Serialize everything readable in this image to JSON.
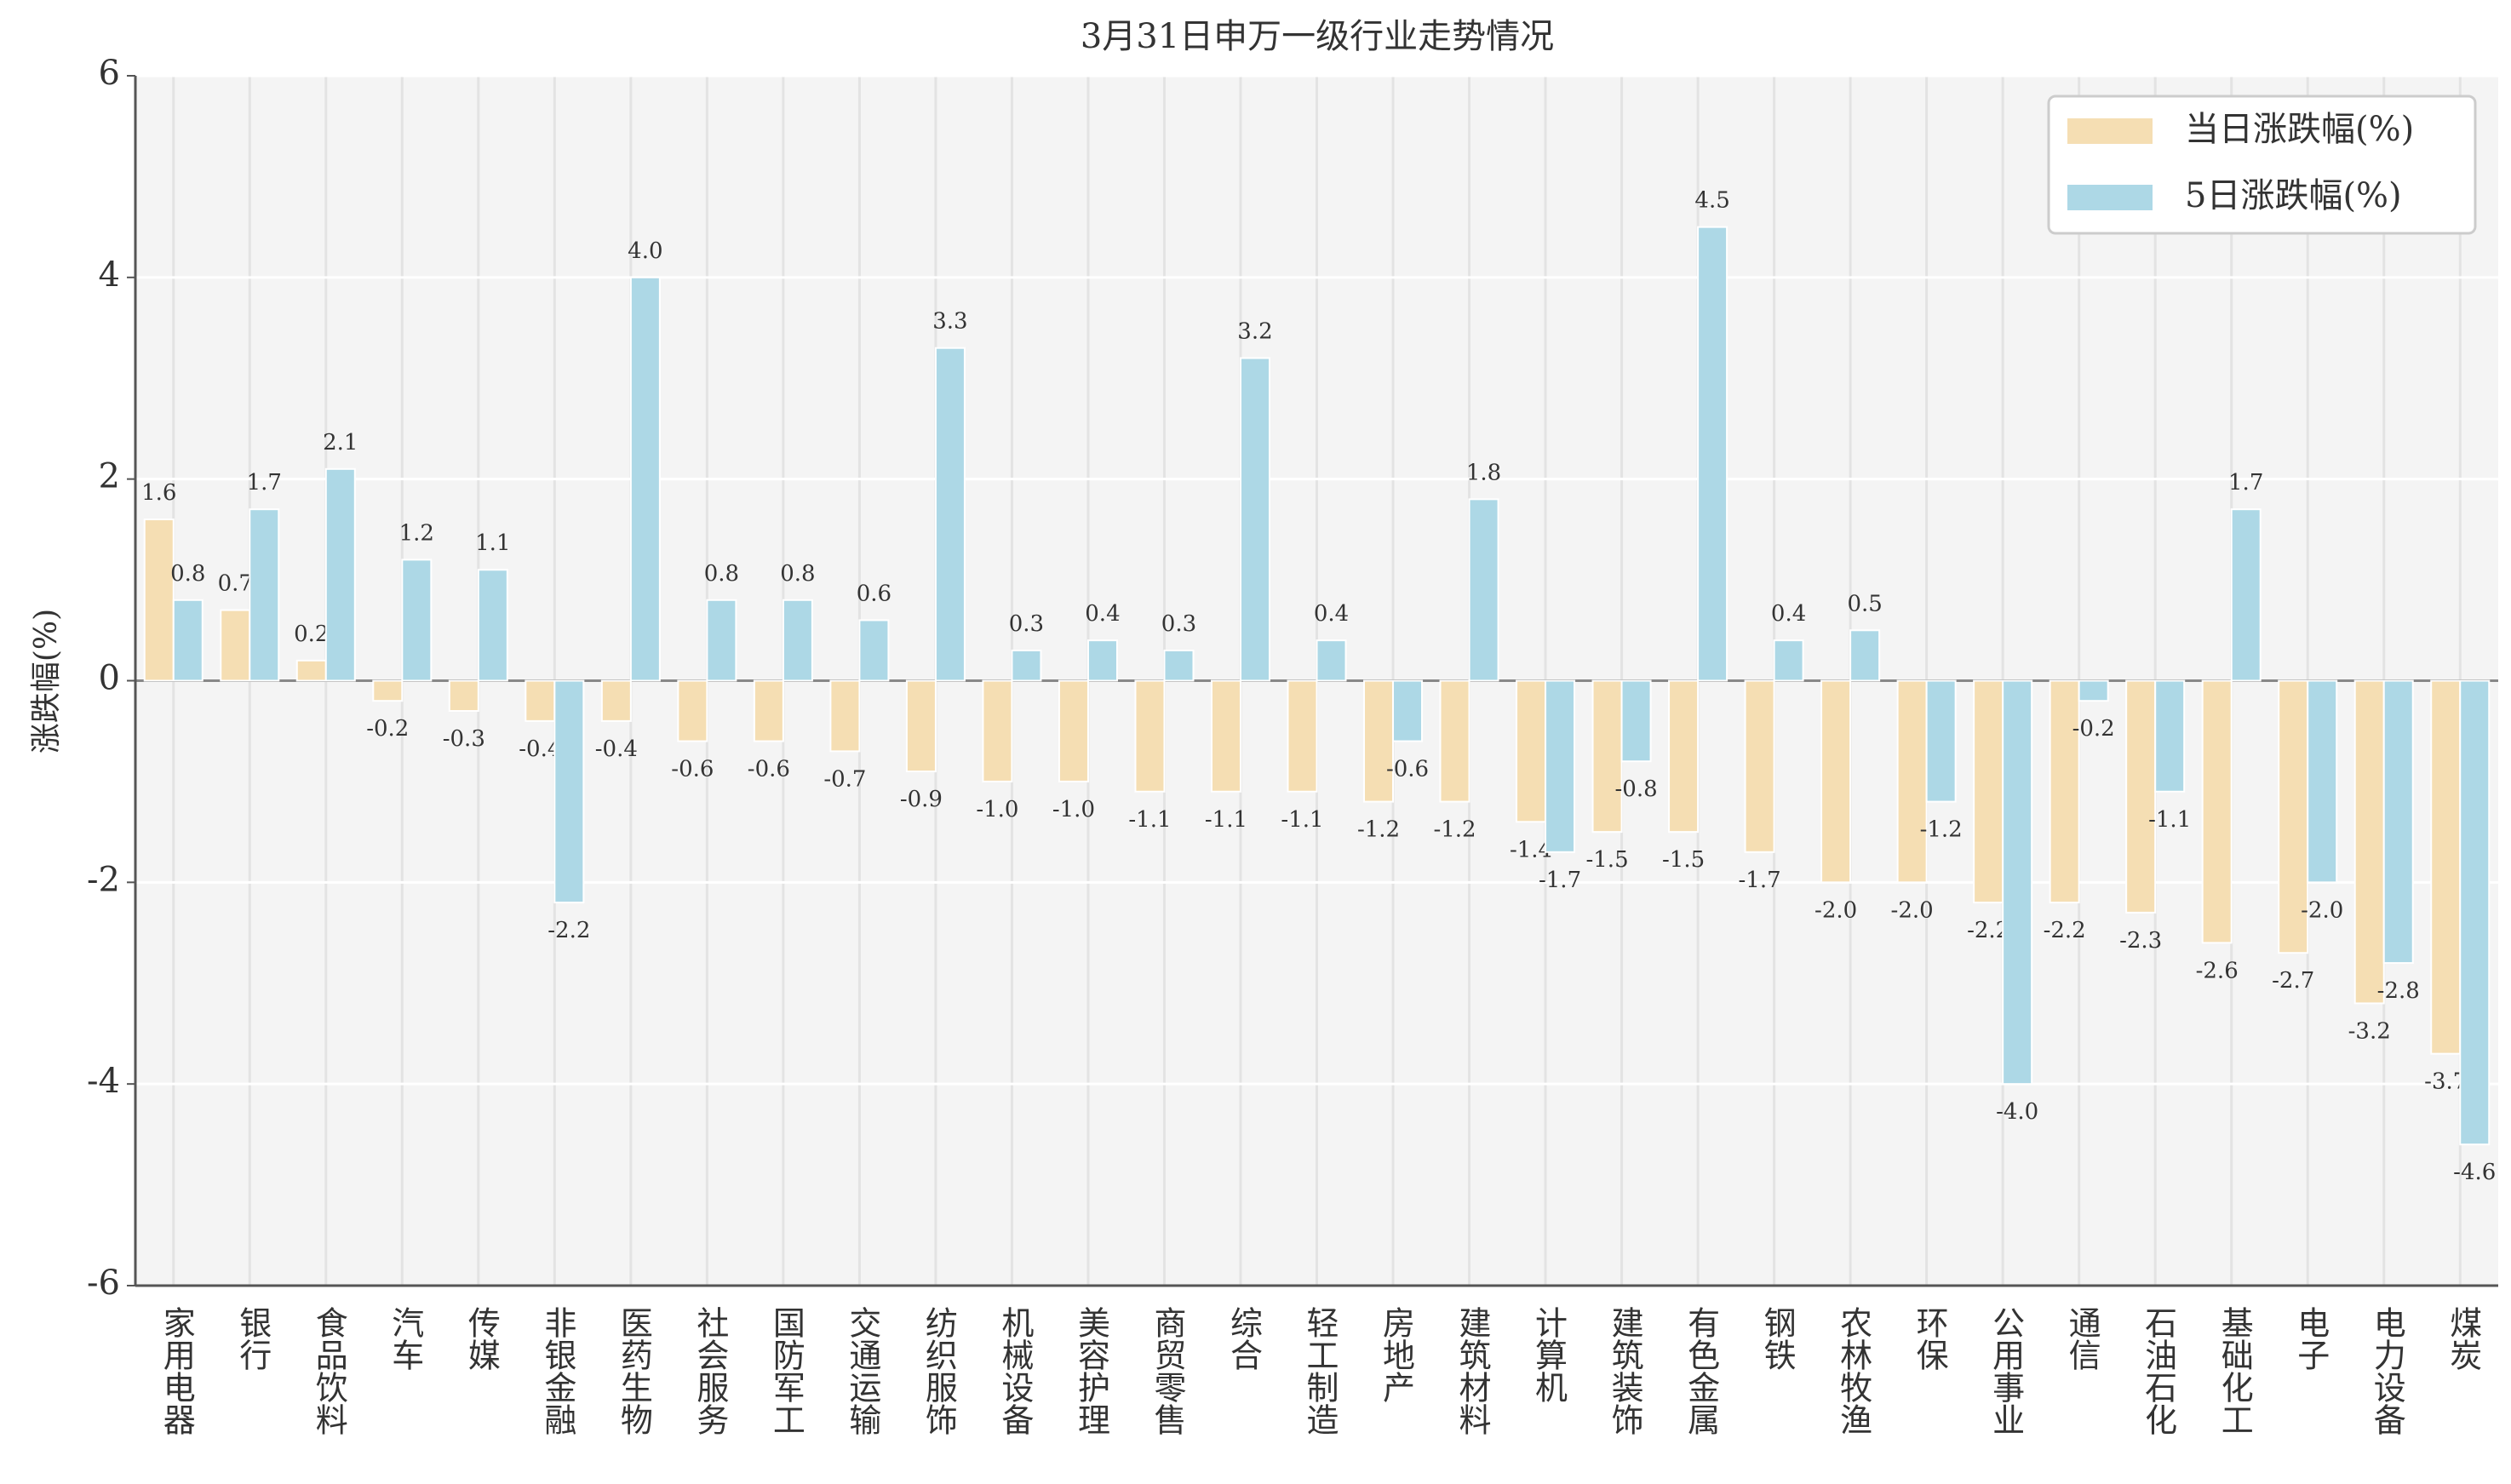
{
  "chart_data": {
    "type": "bar",
    "title": "3月31日申万一级行业走势情况",
    "ylabel": "涨跌幅(%)",
    "categories": [
      "家用电器",
      "银行",
      "食品饮料",
      "汽车",
      "传媒",
      "非银金融",
      "医药生物",
      "社会服务",
      "国防军工",
      "交通运输",
      "纺织服饰",
      "机械设备",
      "美容护理",
      "商贸零售",
      "综合",
      "轻工制造",
      "房地产",
      "建筑材料",
      "计算机",
      "建筑装饰",
      "有色金属",
      "钢铁",
      "农林牧渔",
      "环保",
      "公用事业",
      "通信",
      "石油石化",
      "基础化工",
      "电子",
      "电力设备",
      "煤炭"
    ],
    "series": [
      {
        "name": "当日涨跌幅(%)",
        "color": "#f5deb3",
        "values": [
          1.6,
          0.7,
          0.2,
          -0.2,
          -0.3,
          -0.4,
          -0.4,
          -0.6,
          -0.6,
          -0.7,
          -0.9,
          -1.0,
          -1.0,
          -1.1,
          -1.1,
          -1.1,
          -1.2,
          -1.2,
          -1.4,
          -1.5,
          -1.5,
          -1.7,
          -2.0,
          -2.0,
          -2.2,
          -2.2,
          -2.3,
          -2.6,
          -2.7,
          -3.2,
          -3.7
        ],
        "value_labels": [
          "1.6",
          "0.7",
          "0.2",
          "-0.2",
          "-0.3",
          "-0.4",
          "-0.4",
          "-0.6",
          "-0.6",
          "-0.7",
          "-0.9",
          "-1.0",
          "-1.0",
          "-1.1",
          "-1.1",
          "-1.1",
          "-1.2",
          "-1.2",
          "-1.4",
          "-1.5",
          "-1.5",
          "-1.7",
          "-2.0",
          "-2.0",
          "-2.2",
          "-2.2",
          "-2.3",
          "-2.6",
          "-2.7",
          "-3.2",
          "-3.7"
        ]
      },
      {
        "name": "5日涨跌幅(%)",
        "color": "#add8e6",
        "values": [
          0.8,
          1.7,
          2.1,
          1.2,
          1.1,
          -2.2,
          4.0,
          0.8,
          0.8,
          0.6,
          3.3,
          0.3,
          0.4,
          0.3,
          3.2,
          0.4,
          -0.6,
          1.8,
          -1.7,
          -0.8,
          4.5,
          0.4,
          0.5,
          -1.2,
          -4.0,
          -0.2,
          -1.1,
          1.7,
          -2.0,
          -2.8,
          -4.6
        ],
        "value_labels": [
          "0.8",
          "1.7",
          "2.1",
          "1.2",
          "1.1",
          "-2.2",
          "4.0",
          "0.8",
          "0.8",
          "0.6",
          "3.3",
          "0.3",
          "0.4",
          "0.3",
          "3.2",
          "0.4",
          "-0.6",
          "1.8",
          "-1.7",
          "-0.8",
          "4.5",
          "0.4",
          "0.5",
          "-1.2",
          "-4.0",
          "-0.2",
          "-1.1",
          "1.7",
          "-2.0",
          "-2.8",
          "-4.6"
        ]
      }
    ],
    "ylim": [
      -6,
      6
    ],
    "yticks": [
      -6,
      -4,
      -2,
      0,
      2,
      4,
      6
    ],
    "grid": true,
    "legend": "upper right"
  }
}
